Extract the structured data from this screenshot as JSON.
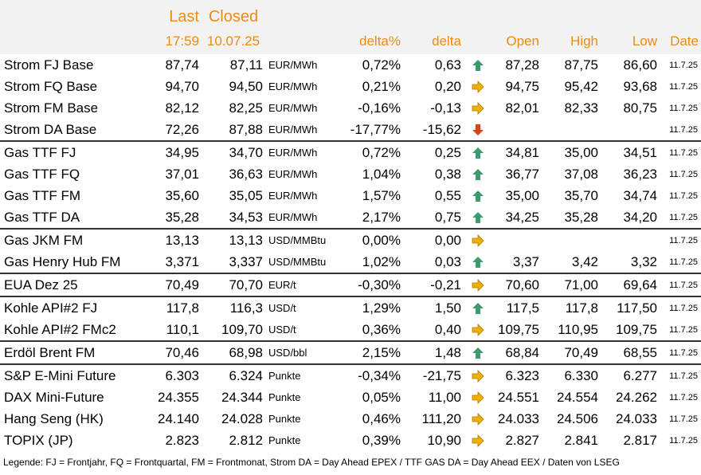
{
  "header": {
    "last_label": "Last",
    "closed_label": "Closed",
    "last_time": "17:59",
    "closed_date": "10.07.25",
    "delta_pct_label": "delta%",
    "delta_label": "delta",
    "open_label": "Open",
    "high_label": "High",
    "low_label": "Low",
    "date_label": "Date"
  },
  "colors": {
    "header_text": "#ed8b12",
    "header_bg": "#f2f2f2",
    "arrow_up": "#3d9a6e",
    "arrow_side": "#f0b000",
    "arrow_down": "#d8461c"
  },
  "rows": [
    {
      "name": "Strom FJ Base",
      "last": "87,74",
      "closed": "87,11",
      "unit": "EUR/MWh",
      "delta_pct": "0,72%",
      "delta": "0,63",
      "trend": "up",
      "open": "87,28",
      "high": "87,75",
      "low": "86,60",
      "date": "11.7.25"
    },
    {
      "name": "Strom FQ Base",
      "last": "94,70",
      "closed": "94,50",
      "unit": "EUR/MWh",
      "delta_pct": "0,21%",
      "delta": "0,20",
      "trend": "side",
      "open": "94,75",
      "high": "95,42",
      "low": "93,68",
      "date": "11.7.25"
    },
    {
      "name": "Strom FM Base",
      "last": "82,12",
      "closed": "82,25",
      "unit": "EUR/MWh",
      "delta_pct": "-0,16%",
      "delta": "-0,13",
      "trend": "side",
      "open": "82,01",
      "high": "82,33",
      "low": "80,75",
      "date": "11.7.25"
    },
    {
      "name": "Strom DA Base",
      "last": "72,26",
      "closed": "87,88",
      "unit": "EUR/MWh",
      "delta_pct": "-17,77%",
      "delta": "-15,62",
      "trend": "down",
      "open": "",
      "high": "",
      "low": "",
      "date": "11.7.25"
    },
    {
      "name": "Gas TTF FJ",
      "last": "34,95",
      "closed": "34,70",
      "unit": "EUR/MWh",
      "delta_pct": "0,72%",
      "delta": "0,25",
      "trend": "up",
      "open": "34,81",
      "high": "35,00",
      "low": "34,51",
      "date": "11.7.25",
      "sep": true
    },
    {
      "name": "Gas TTF FQ",
      "last": "37,01",
      "closed": "36,63",
      "unit": "EUR/MWh",
      "delta_pct": "1,04%",
      "delta": "0,38",
      "trend": "up",
      "open": "36,77",
      "high": "37,08",
      "low": "36,23",
      "date": "11.7.25"
    },
    {
      "name": "Gas TTF FM",
      "last": "35,60",
      "closed": "35,05",
      "unit": "EUR/MWh",
      "delta_pct": "1,57%",
      "delta": "0,55",
      "trend": "up",
      "open": "35,00",
      "high": "35,70",
      "low": "34,74",
      "date": "11.7.25"
    },
    {
      "name": "Gas TTF DA",
      "last": "35,28",
      "closed": "34,53",
      "unit": "EUR/MWh",
      "delta_pct": "2,17%",
      "delta": "0,75",
      "trend": "up",
      "open": "34,25",
      "high": "35,28",
      "low": "34,20",
      "date": "11.7.25"
    },
    {
      "name": "Gas JKM FM",
      "last": "13,13",
      "closed": "13,13",
      "unit": "USD/MMBtu",
      "delta_pct": "0,00%",
      "delta": "0,00",
      "trend": "side",
      "open": "",
      "high": "",
      "low": "",
      "date": "11.7.25",
      "sep": true
    },
    {
      "name": "Gas Henry Hub FM",
      "last": "3,371",
      "closed": "3,337",
      "unit": "USD/MMBtu",
      "delta_pct": "1,02%",
      "delta": "0,03",
      "trend": "up",
      "open": "3,37",
      "high": "3,42",
      "low": "3,32",
      "date": "11.7.25"
    },
    {
      "name": "EUA Dez 25",
      "last": "70,49",
      "closed": "70,70",
      "unit": "EUR/t",
      "delta_pct": "-0,30%",
      "delta": "-0,21",
      "trend": "side",
      "open": "70,60",
      "high": "71,00",
      "low": "69,64",
      "date": "11.7.25",
      "sep": true
    },
    {
      "name": "Kohle API#2 FJ",
      "last": "117,8",
      "closed": "116,3",
      "unit": "USD/t",
      "delta_pct": "1,29%",
      "delta": "1,50",
      "trend": "up",
      "open": "117,5",
      "high": "117,8",
      "low": "117,50",
      "date": "11.7.25",
      "sep": true
    },
    {
      "name": "Kohle API#2 FMc2",
      "last": "110,1",
      "closed": "109,70",
      "unit": "USD/t",
      "delta_pct": "0,36%",
      "delta": "0,40",
      "trend": "side",
      "open": "109,75",
      "high": "110,95",
      "low": "109,75",
      "date": "11.7.25"
    },
    {
      "name": "Erdöl Brent FM",
      "last": "70,46",
      "closed": "68,98",
      "unit": "USD/bbl",
      "delta_pct": "2,15%",
      "delta": "1,48",
      "trend": "up",
      "open": "68,84",
      "high": "70,49",
      "low": "68,55",
      "date": "11.7.25",
      "sep": true
    },
    {
      "name": "S&P E-Mini Future",
      "last": "6.303",
      "closed": "6.324",
      "unit": "Punkte",
      "delta_pct": "-0,34%",
      "delta": "-21,75",
      "trend": "side",
      "open": "6.323",
      "high": "6.330",
      "low": "6.277",
      "date": "11.7.25",
      "sep": true
    },
    {
      "name": "DAX Mini-Future",
      "last": "24.355",
      "closed": "24.344",
      "unit": "Punkte",
      "delta_pct": "0,05%",
      "delta": "11,00",
      "trend": "side",
      "open": "24.551",
      "high": "24.554",
      "low": "24.262",
      "date": "11.7.25"
    },
    {
      "name": "Hang Seng (HK)",
      "last": "24.140",
      "closed": "24.028",
      "unit": "Punkte",
      "delta_pct": "0,46%",
      "delta": "111,20",
      "trend": "side",
      "open": "24.033",
      "high": "24.506",
      "low": "24.033",
      "date": "11.7.25"
    },
    {
      "name": "TOPIX (JP)",
      "last": "2.823",
      "closed": "2.812",
      "unit": "Punkte",
      "delta_pct": "0,39%",
      "delta": "10,90",
      "trend": "side",
      "open": "2.827",
      "high": "2.841",
      "low": "2.817",
      "date": "11.7.25"
    }
  ],
  "legend": "Legende: FJ = Frontjahr, FQ = Frontquartal, FM = Frontmonat, Strom DA = Day Ahead EPEX / TTF GAS DA = Day Ahead EEX / Daten von LSEG"
}
